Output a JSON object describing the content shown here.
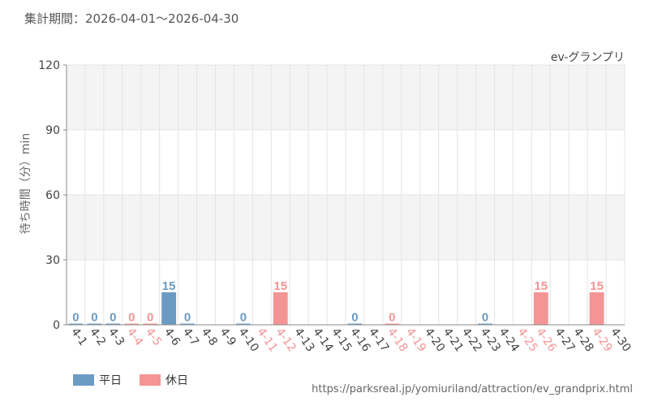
{
  "header": {
    "period": "集計期間：2026-04-01〜2026-04-30"
  },
  "footer": {
    "url": "https://parksreal.jp/yomiuriland/attraction/ev_grandprix.html"
  },
  "legend": {
    "weekday_label": "平日",
    "holiday_label": "休日"
  },
  "colors": {
    "weekday": "#6b9bc3",
    "holiday": "#f49494",
    "band": "#f4f4f4",
    "axis": "#888888",
    "grid": "#e4e4e4"
  },
  "chart_data": {
    "type": "bar",
    "title": "ev-グランプリ",
    "ylabel": "待ち時間（分）min",
    "xlabel": "",
    "ylim": [
      0,
      120
    ],
    "yticks": [
      0,
      30,
      60,
      90,
      120
    ],
    "grid": true,
    "legend_position": "bottom-left",
    "categories": [
      "4-1",
      "4-2",
      "4-3",
      "4-4",
      "4-5",
      "4-6",
      "4-7",
      "4-8",
      "4-9",
      "4-10",
      "4-11",
      "4-12",
      "4-13",
      "4-14",
      "4-15",
      "4-16",
      "4-17",
      "4-18",
      "4-19",
      "4-20",
      "4-21",
      "4-22",
      "4-23",
      "4-24",
      "4-25",
      "4-26",
      "4-27",
      "4-28",
      "4-29",
      "4-30"
    ],
    "day_type": [
      "weekday",
      "weekday",
      "weekday",
      "holiday",
      "holiday",
      "weekday",
      "weekday",
      "weekday",
      "weekday",
      "weekday",
      "holiday",
      "holiday",
      "weekday",
      "weekday",
      "weekday",
      "weekday",
      "weekday",
      "holiday",
      "holiday",
      "weekday",
      "weekday",
      "weekday",
      "weekday",
      "weekday",
      "holiday",
      "holiday",
      "weekday",
      "weekday",
      "holiday",
      "weekday"
    ],
    "series": [
      {
        "name": "平日",
        "values": [
          0,
          0,
          0,
          null,
          null,
          15,
          0,
          null,
          null,
          0,
          null,
          null,
          null,
          null,
          null,
          0,
          null,
          null,
          null,
          null,
          null,
          null,
          0,
          null,
          null,
          null,
          null,
          null,
          null,
          null
        ]
      },
      {
        "name": "休日",
        "values": [
          null,
          null,
          null,
          0,
          0,
          null,
          null,
          null,
          null,
          null,
          null,
          15,
          null,
          null,
          null,
          null,
          null,
          0,
          null,
          null,
          null,
          null,
          null,
          null,
          null,
          15,
          null,
          null,
          15,
          null
        ]
      }
    ]
  }
}
